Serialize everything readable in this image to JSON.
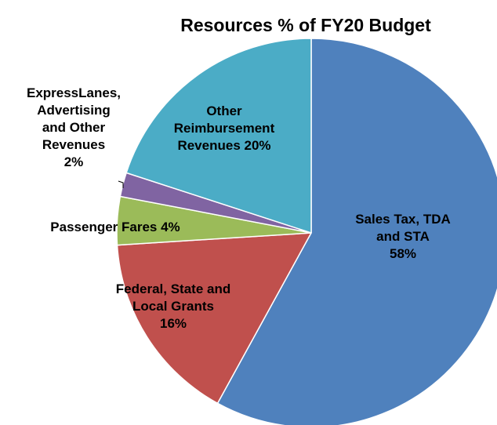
{
  "chart_data": {
    "type": "pie",
    "title": "Resources % of FY20 Budget",
    "start_angle_deg": 0,
    "direction": "clockwise",
    "slices": [
      {
        "id": "sales-tax",
        "label_lines": [
          "Sales Tax, TDA",
          "and STA",
          "58%"
        ],
        "value": 58,
        "color": "#4F81BD"
      },
      {
        "id": "grants",
        "label_lines": [
          "Federal, State and",
          "Local Grants",
          "16%"
        ],
        "value": 16,
        "color": "#C0504D"
      },
      {
        "id": "passenger-fares",
        "label_lines": [
          "Passenger Fares 4%"
        ],
        "value": 4,
        "color": "#9BBB59"
      },
      {
        "id": "expresslanes",
        "label_lines": [
          "ExpressLanes,",
          "Advertising",
          "and Other",
          "Revenues",
          "2%"
        ],
        "value": 2,
        "color": "#8064A2"
      },
      {
        "id": "other-reimbursement",
        "label_lines": [
          "Other",
          "Reimbursement",
          "Revenues 20%"
        ],
        "value": 20,
        "color": "#4BACC6"
      }
    ]
  }
}
